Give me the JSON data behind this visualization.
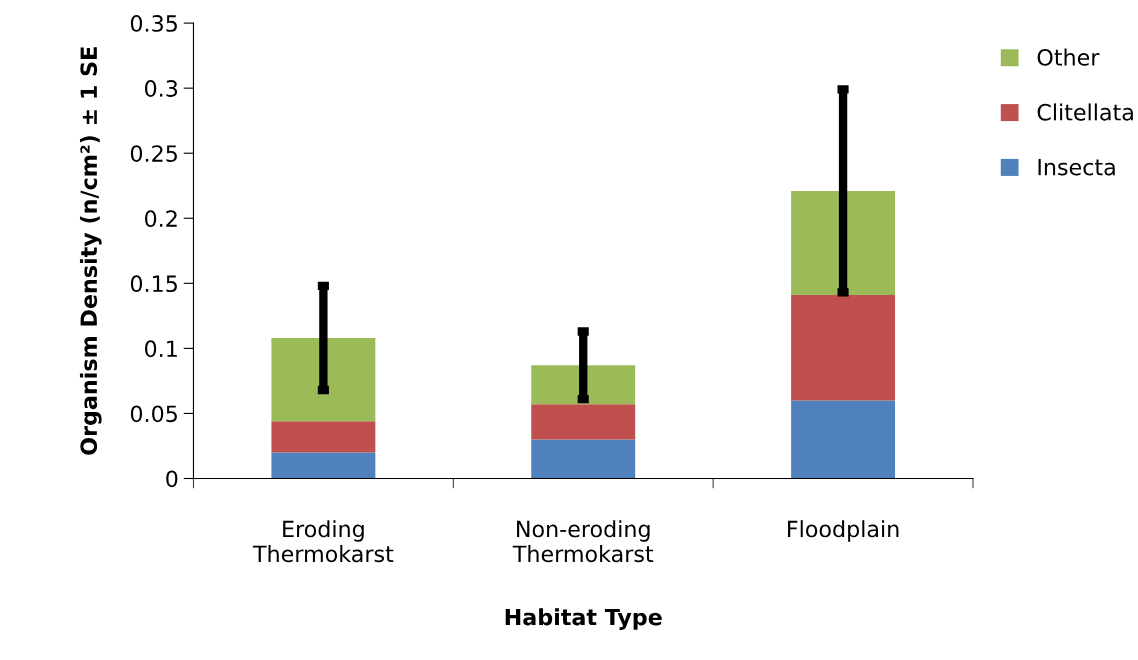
{
  "chart_data": {
    "type": "bar",
    "stacked": true,
    "xlabel": "Habitat Type",
    "ylabel": "Organism Density (n/cm²) ± 1 SE",
    "categories": [
      "Eroding\nThermokarst",
      "Non-eroding\nThermokarst",
      "Floodplain"
    ],
    "series": [
      {
        "name": "Insecta",
        "color": "#4f81bd",
        "values": [
          0.02,
          0.03,
          0.06
        ]
      },
      {
        "name": "Clitellata",
        "color": "#c0504d",
        "values": [
          0.024,
          0.027,
          0.081
        ]
      },
      {
        "name": "Other",
        "color": "#9bbb59",
        "values": [
          0.064,
          0.03,
          0.08
        ],
        "errors": [
          0.04,
          0.026,
          0.078
        ]
      }
    ],
    "ylim": [
      0,
      0.35
    ],
    "yticks": [
      0,
      0.05,
      0.1,
      0.15,
      0.2,
      0.25,
      0.3,
      0.35
    ],
    "grid": false,
    "legend": "right"
  }
}
